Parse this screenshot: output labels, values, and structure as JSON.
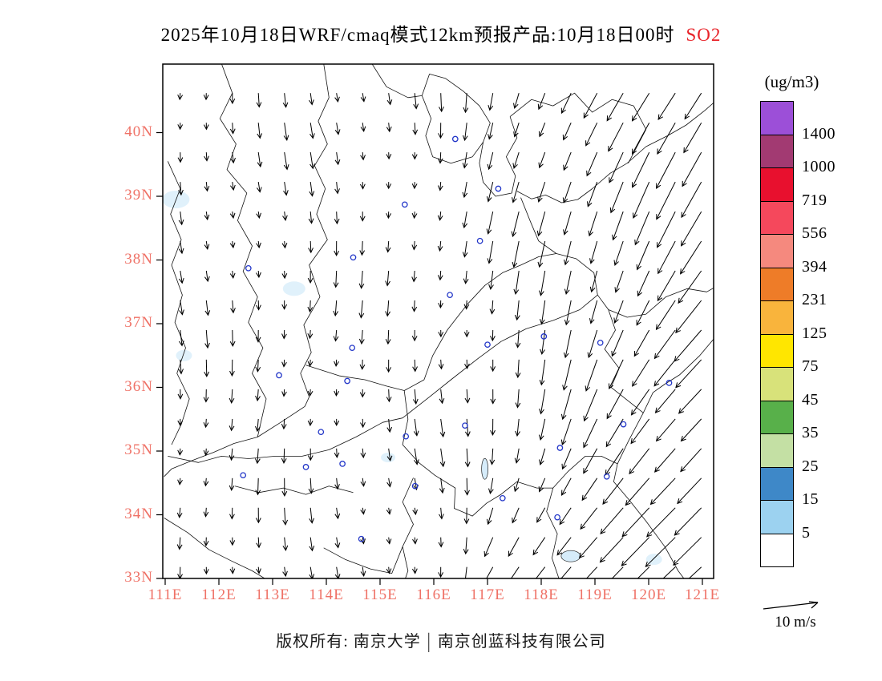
{
  "title": {
    "main": "2025年10月18日WRF/cmaq模式12km预报产品:10月18日00时",
    "species": "SO2"
  },
  "footer": {
    "owner": "版权所有: 南京大学",
    "divider": "|",
    "company": "南京创蓝科技有限公司"
  },
  "axes": {
    "label_color": "#ef7166",
    "lat_values": [
      40,
      39,
      38,
      37,
      36,
      35,
      34,
      33
    ],
    "lat_labels": [
      "40N",
      "39N",
      "38N",
      "37N",
      "36N",
      "35N",
      "34N",
      "33N"
    ],
    "lon_values": [
      111,
      112,
      113,
      114,
      115,
      116,
      117,
      118,
      119,
      120,
      121
    ],
    "lon_labels": [
      "111E",
      "112E",
      "113E",
      "114E",
      "115E",
      "116E",
      "117E",
      "118E",
      "119E",
      "120E",
      "121E"
    ]
  },
  "legend": {
    "units": "(ug/m3)",
    "levels": [
      "1400",
      "1000",
      "719",
      "556",
      "394",
      "231",
      "125",
      "75",
      "45",
      "35",
      "25",
      "15",
      "5"
    ],
    "colors_top_to_bottom": [
      "#9C4FD8",
      "#A23A72",
      "#E8102E",
      "#F5485C",
      "#F5897E",
      "#EE7C28",
      "#F9B43C",
      "#FFE600",
      "#D8E27A",
      "#58B04A",
      "#C4E0A4",
      "#3E88C8",
      "#9CD2F0",
      "#FFFFFF"
    ]
  },
  "wind_reference": {
    "label": "10 m/s",
    "speed_ms": 10
  },
  "chart_data": {
    "type": "map_vector_field",
    "species": "SO2",
    "units": "ug/m3",
    "lon_range": [
      111.0,
      121.25
    ],
    "lat_range": [
      33.0,
      41.1
    ],
    "wind": {
      "ref_speed_ms": 10,
      "pattern": "northerly flow over whole domain; arrows point southward, veering to south-southwest with larger speeds toward the east",
      "grid": {
        "lon_start": 111.28,
        "lon_step": 0.485,
        "cols": 21,
        "lat_start": 33.18,
        "lat_step": 0.465,
        "rows": 17
      }
    },
    "cities": [
      [
        112.55,
        37.87
      ],
      [
        113.12,
        36.19
      ],
      [
        112.45,
        34.62
      ],
      [
        113.62,
        34.75
      ],
      [
        114.3,
        34.8
      ],
      [
        113.9,
        35.3
      ],
      [
        114.39,
        36.1
      ],
      [
        114.48,
        36.62
      ],
      [
        114.5,
        38.04
      ],
      [
        115.46,
        38.87
      ],
      [
        116.4,
        39.9
      ],
      [
        117.2,
        39.12
      ],
      [
        116.86,
        38.3
      ],
      [
        116.3,
        37.45
      ],
      [
        117.0,
        36.67
      ],
      [
        118.05,
        36.8
      ],
      [
        119.1,
        36.7
      ],
      [
        120.38,
        36.07
      ],
      [
        115.48,
        35.23
      ],
      [
        116.58,
        35.4
      ],
      [
        117.28,
        34.26
      ],
      [
        115.65,
        34.45
      ],
      [
        118.35,
        35.05
      ],
      [
        119.22,
        34.6
      ],
      [
        118.3,
        33.96
      ],
      [
        114.65,
        33.62
      ],
      [
        119.53,
        35.42
      ]
    ],
    "boundaries": [
      [
        [
          117.55,
          39.08
        ],
        [
          117.82,
          38.96
        ],
        [
          118.08,
          39.02
        ],
        [
          118.38,
          38.9
        ],
        [
          118.68,
          38.95
        ],
        [
          118.95,
          39.12
        ],
        [
          119.28,
          39.36
        ],
        [
          119.6,
          39.52
        ],
        [
          119.95,
          39.78
        ],
        [
          120.35,
          39.95
        ],
        [
          120.7,
          40.12
        ],
        [
          121.05,
          40.35
        ],
        [
          121.25,
          40.5
        ]
      ],
      [
        [
          117.62,
          38.98
        ],
        [
          117.8,
          38.6
        ],
        [
          117.95,
          38.3
        ],
        [
          118.28,
          38.1
        ],
        [
          118.65,
          38.02
        ],
        [
          118.98,
          37.8
        ],
        [
          119.05,
          37.45
        ],
        [
          119.25,
          37.22
        ],
        [
          119.6,
          37.1
        ],
        [
          119.95,
          37.15
        ],
        [
          120.32,
          37.42
        ],
        [
          120.72,
          37.55
        ],
        [
          121.08,
          37.5
        ],
        [
          121.25,
          37.58
        ]
      ],
      [
        [
          121.25,
          36.8
        ],
        [
          120.95,
          36.5
        ],
        [
          120.58,
          36.2
        ],
        [
          120.3,
          36.05
        ],
        [
          120.08,
          35.92
        ],
        [
          119.9,
          35.6
        ],
        [
          119.62,
          35.15
        ],
        [
          119.42,
          34.8
        ],
        [
          119.35,
          34.52
        ],
        [
          119.62,
          34.25
        ],
        [
          119.95,
          33.9
        ],
        [
          120.3,
          33.5
        ],
        [
          120.55,
          33.12
        ],
        [
          120.7,
          32.95
        ]
      ],
      [
        [
          113.95,
          41.08
        ],
        [
          114.05,
          40.55
        ],
        [
          113.85,
          40.18
        ],
        [
          114.02,
          39.82
        ],
        [
          113.78,
          39.48
        ],
        [
          113.98,
          39.12
        ],
        [
          113.82,
          38.72
        ],
        [
          114.02,
          38.32
        ],
        [
          113.68,
          37.92
        ],
        [
          113.88,
          37.42
        ],
        [
          113.58,
          36.98
        ],
        [
          113.72,
          36.55
        ],
        [
          113.52,
          36.22
        ],
        [
          113.68,
          35.85
        ],
        [
          113.6,
          35.7
        ]
      ],
      [
        [
          113.6,
          35.7
        ],
        [
          113.15,
          35.45
        ],
        [
          112.72,
          35.22
        ],
        [
          112.28,
          35.12
        ],
        [
          111.9,
          34.98
        ],
        [
          111.5,
          34.85
        ],
        [
          111.12,
          34.72
        ],
        [
          110.98,
          34.6
        ]
      ],
      [
        [
          113.62,
          36.35
        ],
        [
          114.25,
          36.18
        ],
        [
          114.72,
          36.12
        ],
        [
          115.12,
          36.02
        ],
        [
          115.45,
          35.95
        ],
        [
          115.82,
          36.12
        ],
        [
          115.98,
          36.5
        ],
        [
          116.25,
          36.9
        ],
        [
          116.62,
          37.3
        ],
        [
          116.95,
          37.6
        ],
        [
          117.28,
          37.8
        ],
        [
          117.62,
          37.92
        ],
        [
          117.95,
          38.05
        ],
        [
          118.28,
          38.1
        ]
      ],
      [
        [
          115.45,
          35.95
        ],
        [
          115.52,
          35.5
        ],
        [
          115.42,
          35.1
        ],
        [
          115.72,
          34.82
        ],
        [
          116.02,
          34.62
        ],
        [
          116.4,
          34.42
        ],
        [
          116.38,
          34.1
        ],
        [
          116.72,
          33.98
        ],
        [
          116.98,
          34.18
        ],
        [
          117.25,
          34.32
        ],
        [
          117.55,
          34.52
        ],
        [
          117.92,
          34.42
        ],
        [
          118.22,
          34.42
        ],
        [
          118.5,
          34.68
        ],
        [
          118.82,
          34.92
        ],
        [
          119.12,
          34.92
        ],
        [
          119.42,
          34.8
        ]
      ],
      [
        [
          115.62,
          34.58
        ],
        [
          115.42,
          34.2
        ],
        [
          115.62,
          33.85
        ],
        [
          115.42,
          33.5
        ],
        [
          115.52,
          33.12
        ],
        [
          115.45,
          32.95
        ]
      ],
      [
        [
          118.22,
          34.42
        ],
        [
          118.1,
          34.05
        ],
        [
          118.3,
          33.7
        ],
        [
          118.2,
          33.32
        ],
        [
          118.35,
          32.95
        ]
      ],
      [
        [
          115.78,
          40.58
        ],
        [
          115.95,
          40.22
        ],
        [
          115.85,
          39.95
        ],
        [
          115.98,
          39.62
        ],
        [
          116.32,
          39.52
        ],
        [
          116.72,
          39.62
        ],
        [
          116.92,
          39.85
        ],
        [
          117.05,
          40.15
        ],
        [
          116.85,
          40.42
        ],
        [
          116.55,
          40.65
        ],
        [
          116.22,
          40.85
        ],
        [
          115.92,
          40.92
        ],
        [
          115.78,
          40.58
        ]
      ],
      [
        [
          117.42,
          40.25
        ],
        [
          117.55,
          39.92
        ],
        [
          117.35,
          39.62
        ],
        [
          117.52,
          39.32
        ],
        [
          117.45,
          39.05
        ],
        [
          117.15,
          39.0
        ],
        [
          116.92,
          39.22
        ],
        [
          116.85,
          39.52
        ],
        [
          116.92,
          39.85
        ]
      ],
      [
        [
          117.42,
          40.25
        ],
        [
          117.82,
          40.52
        ],
        [
          118.22,
          40.42
        ],
        [
          118.62,
          40.62
        ],
        [
          118.95,
          40.32
        ],
        [
          119.32,
          40.52
        ],
        [
          119.72,
          40.42
        ],
        [
          119.95,
          40.05
        ],
        [
          119.62,
          39.52
        ]
      ],
      [
        [
          114.85,
          41.08
        ],
        [
          115.12,
          40.72
        ],
        [
          115.52,
          40.55
        ],
        [
          115.78,
          40.58
        ]
      ],
      [
        [
          112.05,
          41.08
        ],
        [
          112.25,
          40.62
        ],
        [
          112.02,
          40.22
        ],
        [
          112.32,
          39.82
        ],
        [
          112.15,
          39.42
        ],
        [
          112.52,
          39.05
        ],
        [
          112.35,
          38.62
        ],
        [
          112.62,
          38.22
        ],
        [
          112.45,
          37.82
        ],
        [
          112.72,
          37.42
        ],
        [
          112.55,
          37.02
        ],
        [
          112.82,
          36.62
        ],
        [
          112.62,
          36.22
        ],
        [
          112.88,
          35.82
        ],
        [
          112.72,
          35.22
        ]
      ],
      [
        [
          111.05,
          34.92
        ],
        [
          111.62,
          34.82
        ],
        [
          112.05,
          34.92
        ],
        [
          112.55,
          34.88
        ],
        [
          113.05,
          34.92
        ],
        [
          113.55,
          34.92
        ],
        [
          114.05,
          35.02
        ],
        [
          114.55,
          35.22
        ],
        [
          115.05,
          35.45
        ],
        [
          115.42,
          35.52
        ],
        [
          115.92,
          35.85
        ],
        [
          116.32,
          36.12
        ],
        [
          116.82,
          36.45
        ],
        [
          117.25,
          36.72
        ],
        [
          117.72,
          36.92
        ],
        [
          118.22,
          37.05
        ],
        [
          118.72,
          37.22
        ],
        [
          119.05,
          37.45
        ]
      ],
      [
        [
          110.98,
          33.95
        ],
        [
          111.42,
          33.72
        ],
        [
          111.82,
          33.45
        ],
        [
          112.22,
          33.28
        ],
        [
          112.62,
          33.12
        ],
        [
          112.95,
          32.95
        ]
      ],
      [
        [
          111.05,
          39.55
        ],
        [
          111.28,
          39.12
        ],
        [
          111.1,
          38.72
        ],
        [
          111.3,
          38.32
        ],
        [
          111.12,
          37.92
        ],
        [
          111.32,
          37.45
        ],
        [
          111.18,
          37.02
        ],
        [
          111.38,
          36.62
        ],
        [
          111.22,
          36.22
        ],
        [
          111.45,
          35.82
        ],
        [
          111.3,
          35.42
        ],
        [
          111.12,
          35.1
        ]
      ],
      [
        [
          119.25,
          37.22
        ],
        [
          119.38,
          36.9
        ],
        [
          119.18,
          36.6
        ],
        [
          119.45,
          36.3
        ],
        [
          119.3,
          36.0
        ],
        [
          119.9,
          35.6
        ]
      ],
      [
        [
          112.3,
          34.45
        ],
        [
          112.75,
          34.35
        ],
        [
          113.2,
          34.42
        ],
        [
          113.62,
          34.32
        ],
        [
          114.05,
          34.45
        ],
        [
          114.5,
          34.35
        ]
      ],
      [
        [
          113.95,
          33.48
        ],
        [
          114.35,
          33.3
        ],
        [
          114.82,
          33.15
        ],
        [
          115.22,
          33.08
        ],
        [
          115.42,
          33.5
        ]
      ]
    ],
    "lakes": [
      [
        116.95,
        34.72,
        4,
        13
      ],
      [
        118.55,
        33.35,
        12,
        7
      ]
    ],
    "low_concentration_patches": [
      [
        111.2,
        38.95,
        17,
        11
      ],
      [
        113.4,
        37.55,
        14,
        9
      ],
      [
        111.35,
        36.5,
        10,
        7
      ],
      [
        115.15,
        34.9,
        9,
        6
      ],
      [
        120.1,
        33.3,
        10,
        7
      ]
    ]
  }
}
